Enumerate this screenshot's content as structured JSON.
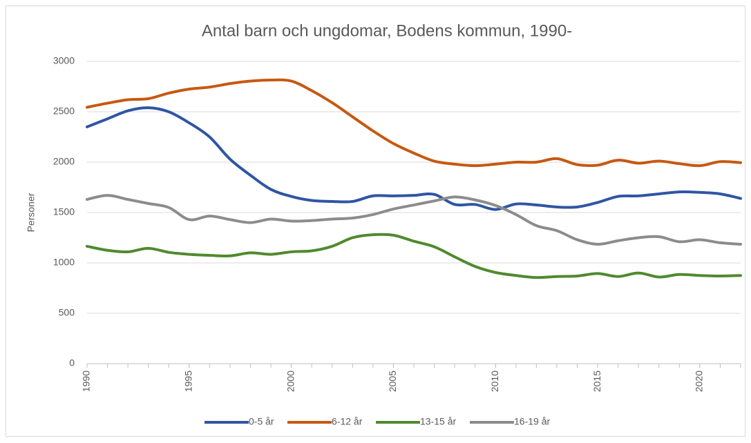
{
  "chart_data": {
    "type": "line",
    "title": "Antal barn och ungdomar, Bodens kommun, 1990-",
    "y_label": "Personer",
    "x": [
      1990,
      1991,
      1992,
      1993,
      1994,
      1995,
      1996,
      1997,
      1998,
      1999,
      2000,
      2001,
      2002,
      2003,
      2004,
      2005,
      2006,
      2007,
      2008,
      2009,
      2010,
      2011,
      2012,
      2013,
      2014,
      2015,
      2016,
      2017,
      2018,
      2019,
      2020,
      2021,
      2022
    ],
    "xlim": [
      1990,
      2022
    ],
    "xticks": [
      1990,
      1995,
      2000,
      2005,
      2010,
      2015,
      2020
    ],
    "ylim": [
      0,
      3000
    ],
    "yticks": [
      0,
      500,
      1000,
      1500,
      2000,
      2500,
      3000
    ],
    "grid": true,
    "legend": "bottom",
    "series": [
      {
        "name": "0-5 år",
        "color": "#2f55a4",
        "values": [
          2350,
          2430,
          2510,
          2540,
          2500,
          2390,
          2250,
          2030,
          1870,
          1730,
          1660,
          1620,
          1610,
          1610,
          1665,
          1665,
          1670,
          1680,
          1580,
          1580,
          1530,
          1585,
          1575,
          1555,
          1555,
          1600,
          1660,
          1665,
          1685,
          1705,
          1700,
          1685,
          1640
        ]
      },
      {
        "name": "6-12 år",
        "color": "#c65911",
        "values": [
          2545,
          2585,
          2620,
          2630,
          2685,
          2725,
          2745,
          2780,
          2805,
          2815,
          2805,
          2710,
          2590,
          2450,
          2310,
          2185,
          2090,
          2010,
          1980,
          1965,
          1980,
          2000,
          2000,
          2035,
          1975,
          1970,
          2020,
          1990,
          2010,
          1985,
          1965,
          2005,
          1995
        ]
      },
      {
        "name": "13-15 år",
        "color": "#4f8a2e",
        "values": [
          1165,
          1125,
          1110,
          1145,
          1105,
          1085,
          1075,
          1070,
          1100,
          1085,
          1110,
          1120,
          1165,
          1250,
          1280,
          1275,
          1215,
          1160,
          1060,
          965,
          905,
          875,
          855,
          865,
          870,
          895,
          865,
          900,
          860,
          885,
          875,
          870,
          875
        ]
      },
      {
        "name": "16-19 år",
        "color": "#8c8c8c",
        "values": [
          1630,
          1670,
          1630,
          1590,
          1550,
          1430,
          1465,
          1430,
          1400,
          1435,
          1415,
          1420,
          1435,
          1445,
          1480,
          1535,
          1575,
          1615,
          1655,
          1625,
          1570,
          1480,
          1370,
          1320,
          1230,
          1185,
          1220,
          1250,
          1260,
          1210,
          1230,
          1200,
          1185
        ]
      }
    ]
  }
}
